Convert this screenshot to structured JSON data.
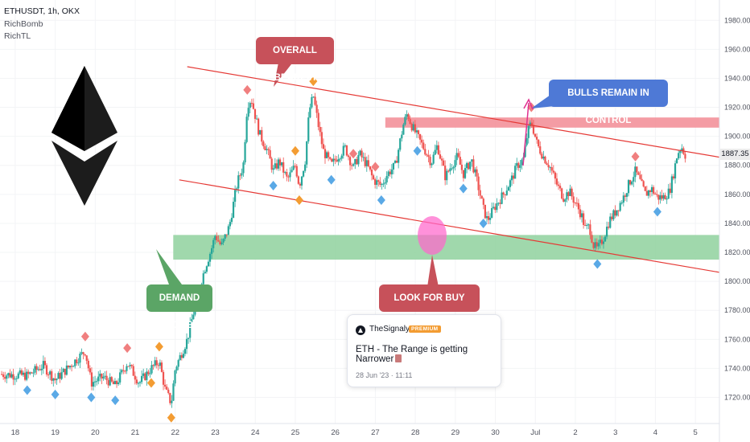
{
  "header": {
    "symbol_line": "ETHUSDT, 1h, OKX",
    "indicator_1": "RichBomb",
    "indicator_2": "RichTL"
  },
  "annotations": {
    "overall_bearish": "OVERALL BEARISH",
    "bulls_remain": "BULLS REMAIN IN CONTROL",
    "demand_zone": "DEMAND ZONE",
    "look_for_buy": "LOOK FOR BUY SETUPS"
  },
  "idea_card": {
    "author": "TheSignalyst",
    "badge": "PREMIUM",
    "title": "ETH - The Range is getting Narrower",
    "date": "28 Jun '23 · 11:11"
  },
  "colors": {
    "bull": "#26a69a",
    "bear": "#ef5350",
    "channel": "#e53935",
    "resistance_zone": "#f28b94",
    "demand_zone": "#8fd19e",
    "callout_red": "#c7515a",
    "callout_blue": "#4e79d6",
    "callout_green": "#5ba566",
    "arrow_magenta": "#e0308f"
  },
  "chart_data": {
    "type": "candlestick",
    "symbol": "ETHUSDT",
    "timeframe": "1h",
    "exchange": "OKX",
    "last_price": 1887.35,
    "ylim": [
      1702,
      1994
    ],
    "y_ticks": [
      1720,
      1740,
      1760,
      1780,
      1800,
      1820,
      1840,
      1860,
      1880,
      1900,
      1920,
      1940,
      1960,
      1980
    ],
    "y_tick_labels": [
      "1720.00",
      "1740.00",
      "1760.00",
      "1780.00",
      "1800.00",
      "1820.00",
      "1840.00",
      "1860.00",
      "1880.00",
      "1900.00",
      "1920.00",
      "1940.00",
      "1960.00",
      "1980.00"
    ],
    "x_ticks": [
      "18",
      "19",
      "20",
      "21",
      "22",
      "23",
      "24",
      "25",
      "26",
      "27",
      "28",
      "29",
      "30",
      "Jul",
      "2",
      "3",
      "4",
      "5"
    ],
    "x_tick_days": [
      0,
      1,
      2,
      3,
      4,
      5,
      6,
      7,
      8,
      9,
      10,
      11,
      12,
      13,
      14,
      15,
      16,
      17
    ],
    "xlim_days": [
      -0.38,
      17.6
    ],
    "close_path": [
      [
        -0.38,
        1736
      ],
      [
        0.3,
        1735
      ],
      [
        0.7,
        1742
      ],
      [
        1.0,
        1732
      ],
      [
        1.3,
        1740
      ],
      [
        1.6,
        1748
      ],
      [
        1.75,
        1752
      ],
      [
        1.9,
        1730
      ],
      [
        2.2,
        1734
      ],
      [
        2.5,
        1728
      ],
      [
        2.8,
        1744
      ],
      [
        3.1,
        1730
      ],
      [
        3.4,
        1740
      ],
      [
        3.6,
        1745
      ],
      [
        3.75,
        1725
      ],
      [
        3.9,
        1716
      ],
      [
        4.0,
        1740
      ],
      [
        4.3,
        1760
      ],
      [
        4.55,
        1790
      ],
      [
        4.75,
        1810
      ],
      [
        4.9,
        1822
      ],
      [
        5.0,
        1832
      ],
      [
        5.15,
        1824
      ],
      [
        5.35,
        1838
      ],
      [
        5.55,
        1868
      ],
      [
        5.7,
        1880
      ],
      [
        5.8,
        1922
      ],
      [
        5.9,
        1926
      ],
      [
        6.1,
        1902
      ],
      [
        6.3,
        1890
      ],
      [
        6.45,
        1876
      ],
      [
        6.6,
        1883
      ],
      [
        6.8,
        1870
      ],
      [
        7.0,
        1880
      ],
      [
        7.1,
        1866
      ],
      [
        7.25,
        1884
      ],
      [
        7.35,
        1918
      ],
      [
        7.45,
        1928
      ],
      [
        7.6,
        1904
      ],
      [
        7.7,
        1890
      ],
      [
        7.9,
        1880
      ],
      [
        8.05,
        1886
      ],
      [
        8.25,
        1892
      ],
      [
        8.45,
        1878
      ],
      [
        8.6,
        1888
      ],
      [
        8.8,
        1880
      ],
      [
        8.95,
        1870
      ],
      [
        9.15,
        1866
      ],
      [
        9.3,
        1874
      ],
      [
        9.5,
        1880
      ],
      [
        9.7,
        1908
      ],
      [
        9.8,
        1916
      ],
      [
        9.9,
        1908
      ],
      [
        10.05,
        1900
      ],
      [
        10.25,
        1890
      ],
      [
        10.4,
        1882
      ],
      [
        10.55,
        1894
      ],
      [
        10.75,
        1872
      ],
      [
        10.9,
        1880
      ],
      [
        11.05,
        1886
      ],
      [
        11.2,
        1874
      ],
      [
        11.4,
        1884
      ],
      [
        11.55,
        1868
      ],
      [
        11.7,
        1850
      ],
      [
        11.8,
        1842
      ],
      [
        12.0,
        1852
      ],
      [
        12.2,
        1860
      ],
      [
        12.4,
        1870
      ],
      [
        12.55,
        1880
      ],
      [
        12.7,
        1884
      ],
      [
        12.8,
        1902
      ],
      [
        12.9,
        1910
      ],
      [
        13.05,
        1894
      ],
      [
        13.2,
        1886
      ],
      [
        13.35,
        1880
      ],
      [
        13.55,
        1866
      ],
      [
        13.7,
        1858
      ],
      [
        13.85,
        1862
      ],
      [
        14.0,
        1854
      ],
      [
        14.15,
        1846
      ],
      [
        14.25,
        1836
      ],
      [
        14.35,
        1838
      ],
      [
        14.45,
        1825
      ],
      [
        14.55,
        1822
      ],
      [
        14.7,
        1830
      ],
      [
        14.85,
        1842
      ],
      [
        15.0,
        1848
      ],
      [
        15.2,
        1858
      ],
      [
        15.35,
        1868
      ],
      [
        15.5,
        1876
      ],
      [
        15.6,
        1870
      ],
      [
        15.75,
        1860
      ],
      [
        15.9,
        1864
      ],
      [
        16.05,
        1858
      ],
      [
        16.2,
        1858
      ],
      [
        16.35,
        1862
      ],
      [
        16.45,
        1874
      ],
      [
        16.55,
        1888
      ],
      [
        16.65,
        1893
      ],
      [
        16.75,
        1887
      ]
    ],
    "overlays": {
      "channel_upper": [
        [
          4.3,
          1948
        ],
        [
          18.8,
          1880
        ]
      ],
      "channel_lower": [
        [
          4.1,
          1870
        ],
        [
          17.65,
          1806
        ]
      ],
      "resistance_zone": [
        1913,
        1906
      ],
      "demand_zone": [
        1832,
        1815
      ]
    }
  }
}
